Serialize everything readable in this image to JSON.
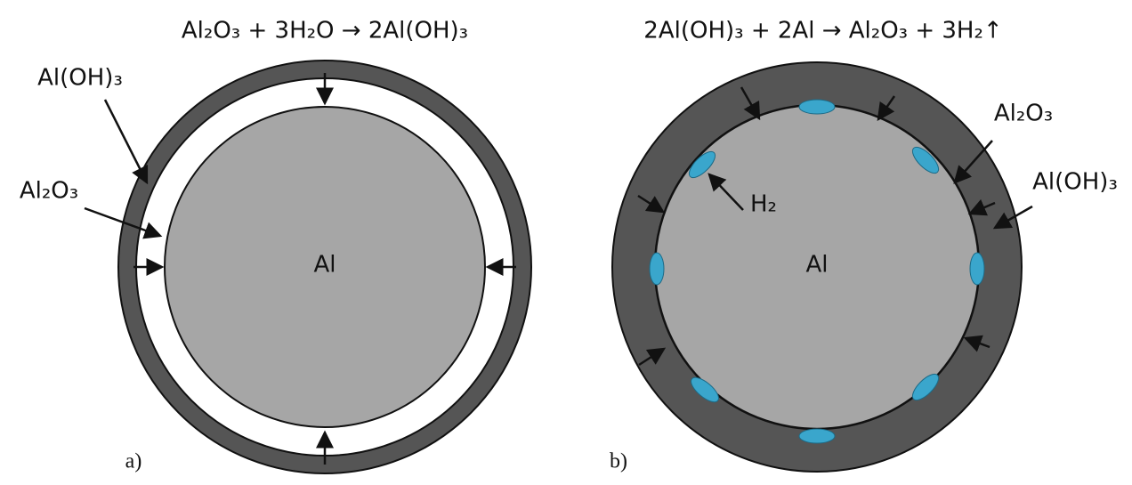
{
  "panel_a": {
    "equation": "Al₂O₃ + 3H₂O → 2Al(OH)₃",
    "caption": "a)",
    "core": "Al",
    "hydroxide_label": "Al(OH)₃",
    "oxide_label": "Al₂O₃"
  },
  "panel_b": {
    "equation": "2Al(OH)₃ + 2Al → Al₂O₃ + 3H₂↑",
    "caption": "b)",
    "core": "Al",
    "hydroxide_label": "Al(OH)₃",
    "oxide_label": "Al₂O₃",
    "gas_label": "H₂"
  }
}
